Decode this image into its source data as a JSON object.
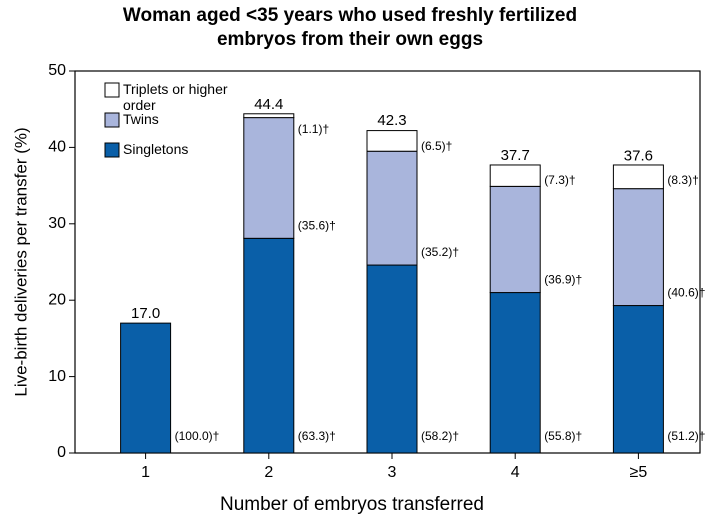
{
  "chart_data": {
    "type": "stacked-bar",
    "title": "Woman aged <35 years who used freshly fertilized embryos from their own eggs",
    "x_label": "Number of embryos transferred",
    "y_label": "Live-birth deliveries per transfer (%)",
    "categories": [
      "1",
      "2",
      "3",
      "4",
      "≥5"
    ],
    "series": [
      {
        "name": "Singletons",
        "color": "#0a5fa8",
        "values": [
          17.0,
          28.1,
          24.6,
          21.0,
          19.3
        ],
        "shares": [
          100.0,
          63.3,
          58.2,
          55.8,
          51.2
        ],
        "share_labels": [
          "(100.0)†",
          "(63.3)†",
          "(58.2)†",
          "(55.8)†",
          "(51.2)†"
        ]
      },
      {
        "name": "Twins",
        "color": "#a9b5dc",
        "values": [
          null,
          15.8,
          14.9,
          13.9,
          15.3
        ],
        "shares": [
          null,
          35.6,
          35.2,
          36.9,
          40.6
        ],
        "share_labels": [
          null,
          "(35.6)†",
          "(35.2)†",
          "(36.9)†",
          "(40.6)†"
        ]
      },
      {
        "name": "Triplets or higher order",
        "color": "#ffffff",
        "values": [
          null,
          0.5,
          2.7,
          2.8,
          3.1
        ],
        "shares": [
          null,
          1.1,
          6.5,
          7.3,
          8.3
        ],
        "share_labels": [
          null,
          "(1.1)†",
          "(6.5)†",
          "(7.3)†",
          "(8.3)†"
        ]
      }
    ],
    "totals": [
      17.0,
      44.4,
      42.3,
      37.7,
      37.6
    ],
    "total_labels": [
      "17.0",
      "44.4",
      "42.3",
      "37.7",
      "37.6"
    ],
    "ylim": [
      0,
      50
    ],
    "yticks": [
      0,
      10,
      20,
      30,
      40,
      50
    ],
    "legend": "upper left"
  }
}
